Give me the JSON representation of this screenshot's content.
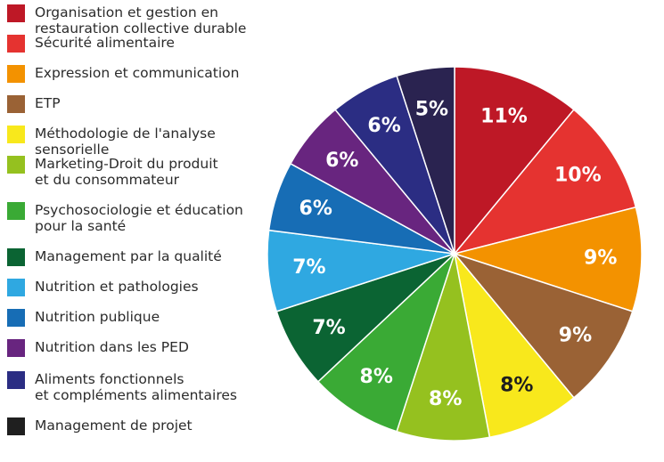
{
  "chart_data": {
    "type": "pie",
    "title": "",
    "legend_position": "left",
    "slices": [
      {
        "label": "Organisation et gestion en restauration collective durable",
        "value": 11,
        "display": "11%",
        "color": "#be1826",
        "text_color": "#ffffff"
      },
      {
        "label": "Sécurité alimentaire",
        "value": 10,
        "display": "10%",
        "color": "#e53330",
        "text_color": "#ffffff"
      },
      {
        "label": "Expression et communication",
        "value": 9,
        "display": "9%",
        "color": "#f39200",
        "text_color": "#ffffff"
      },
      {
        "label": "ETP",
        "value": 9,
        "display": "9%",
        "color": "#9a6235",
        "text_color": "#ffffff"
      },
      {
        "label": "Méthodologie de l'analyse sensorielle",
        "value": 8,
        "display": "8%",
        "color": "#f8e81c",
        "text_color": "#1e1e1e"
      },
      {
        "label": "Marketing-Droit du produit\net du consommateur",
        "value": 8,
        "display": "8%",
        "color": "#95c11f",
        "text_color": "#ffffff"
      },
      {
        "label": "Psychosociologie et éducation\npour la santé",
        "value": 8,
        "display": "8%",
        "color": "#3aaa35",
        "text_color": "#ffffff"
      },
      {
        "label": "Management par la qualité",
        "value": 7,
        "display": "7%",
        "color": "#0b6433",
        "text_color": "#ffffff"
      },
      {
        "label": "Nutrition et pathologies",
        "value": 7,
        "display": "7%",
        "color": "#2fa8e1",
        "text_color": "#ffffff"
      },
      {
        "label": "Nutrition publique",
        "value": 6,
        "display": "6%",
        "color": "#176db5",
        "text_color": "#ffffff"
      },
      {
        "label": "Nutrition dans les PED",
        "value": 6,
        "display": "6%",
        "color": "#68257f",
        "text_color": "#ffffff"
      },
      {
        "label": "Aliments fonctionnels\net compléments alimentaires",
        "value": 6,
        "display": "6%",
        "color": "#2b2d83",
        "text_color": "#ffffff"
      },
      {
        "label": "Management de projet",
        "value": 5,
        "display": "5%",
        "color": "#2a2350",
        "text_color": "#ffffff"
      }
    ],
    "legend_swatches": [
      "#be1826",
      "#e53330",
      "#f39200",
      "#9a6235",
      "#f8e81c",
      "#95c11f",
      "#3aaa35",
      "#0b6433",
      "#2fa8e1",
      "#176db5",
      "#68257f",
      "#2b2d83",
      "#1f1f1f"
    ]
  }
}
